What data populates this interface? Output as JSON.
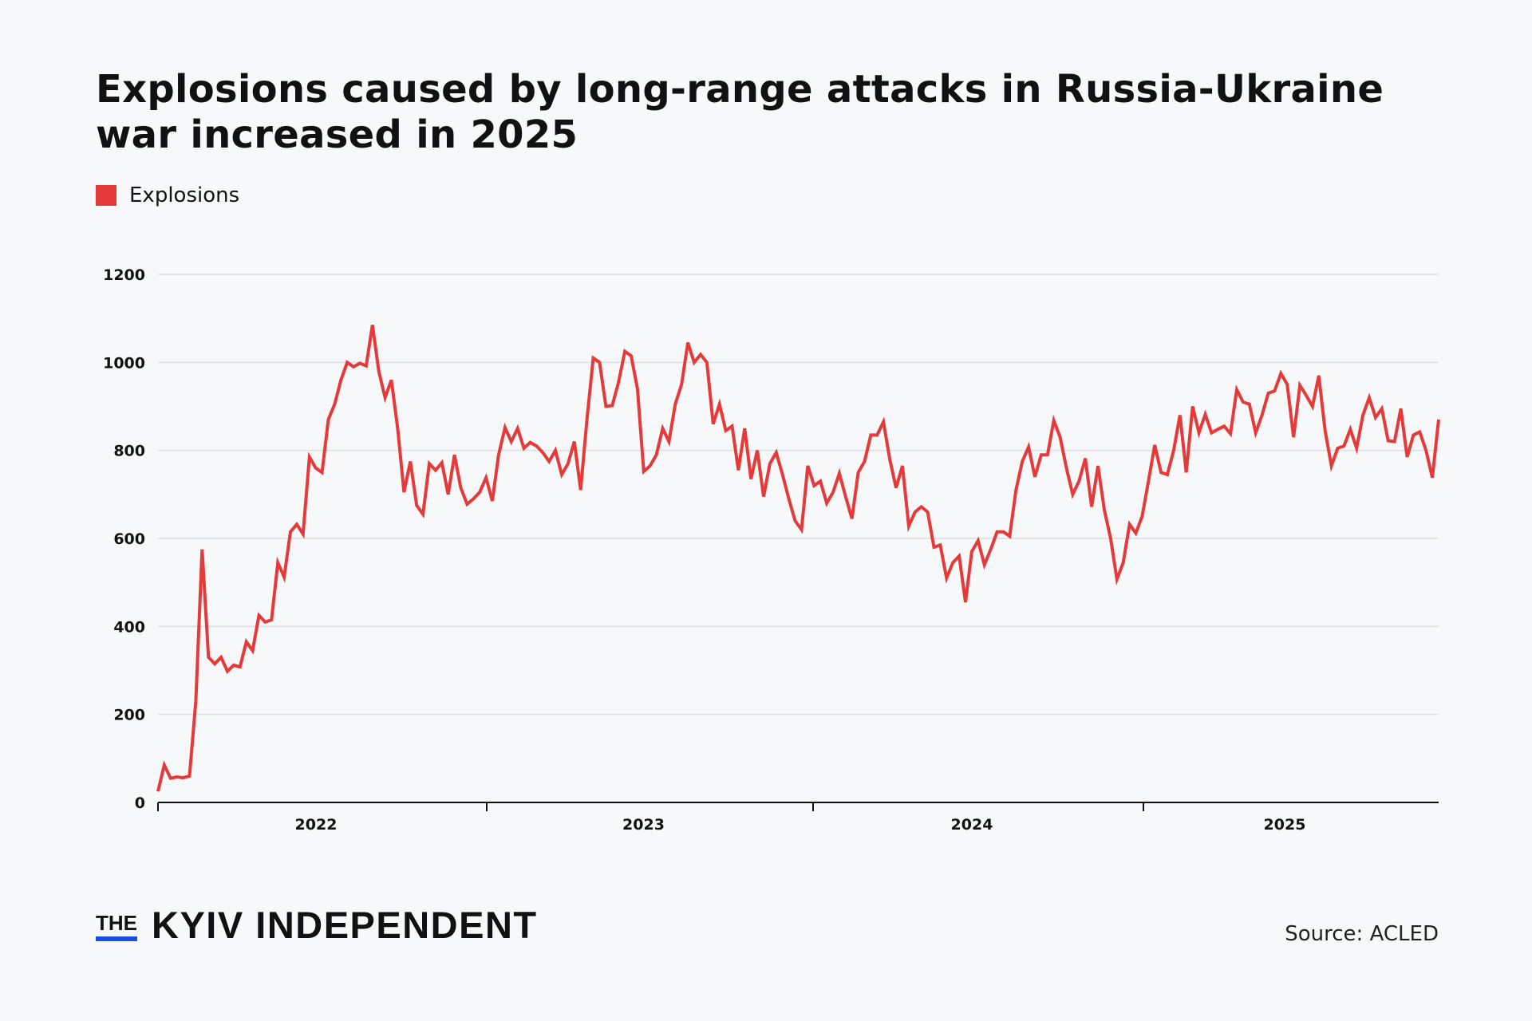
{
  "title": "Explosions caused by long-range attacks in Russia-Ukraine war increased in 2025",
  "legend": {
    "label": "Explosions",
    "color": "#e53a3a"
  },
  "source": "Source: ACLED",
  "logo": {
    "the": "THE",
    "name": "KYIV INDEPENDENT",
    "accent": "#1a4ee0"
  },
  "chart_data": {
    "type": "line",
    "title": "Explosions caused by long-range attacks in Russia-Ukraine war increased in 2025",
    "xlabel": "",
    "ylabel": "",
    "ylim": [
      0,
      1200
    ],
    "yticks": [
      "0",
      "200",
      "400",
      "600",
      "800",
      "1000",
      "1200"
    ],
    "xticks": [
      "2022",
      "2023",
      "2024",
      "2025"
    ],
    "grid": "horizontal",
    "legend_position": "top-left",
    "series": [
      {
        "name": "Explosions",
        "color": "#e53a3a",
        "values": [
          25,
          85,
          55,
          58,
          56,
          60,
          230,
          575,
          330,
          315,
          330,
          298,
          312,
          308,
          365,
          345,
          425,
          410,
          415,
          545,
          512,
          615,
          632,
          610,
          785,
          760,
          750,
          870,
          905,
          960,
          1000,
          990,
          998,
          992,
          1085,
          980,
          920,
          960,
          850,
          705,
          775,
          675,
          655,
          770,
          755,
          772,
          700,
          790,
          715,
          678,
          690,
          705,
          738,
          685,
          790,
          852,
          820,
          850,
          805,
          818,
          810,
          795,
          775,
          800,
          745,
          770,
          820,
          710,
          870,
          1010,
          1000,
          900,
          902,
          955,
          1025,
          1015,
          940,
          752,
          765,
          790,
          850,
          820,
          905,
          950,
          1045,
          1000,
          1018,
          1000,
          860,
          905,
          845,
          855,
          755,
          850,
          735,
          800,
          695,
          770,
          795,
          745,
          690,
          640,
          620,
          765,
          720,
          730,
          680,
          705,
          748,
          695,
          645,
          750,
          775,
          835,
          835,
          865,
          780,
          715,
          765,
          628,
          660,
          672,
          660,
          580,
          585,
          510,
          545,
          560,
          455,
          570,
          595,
          540,
          575,
          615,
          615,
          605,
          710,
          775,
          808,
          740,
          790,
          790,
          868,
          830,
          760,
          700,
          730,
          782,
          672,
          765,
          665,
          600,
          507,
          545,
          632,
          612,
          650,
          730,
          812,
          750,
          745,
          800,
          880,
          750,
          900,
          840,
          882,
          840,
          848,
          855,
          838,
          938,
          910,
          905,
          840,
          880,
          930,
          935,
          975,
          950,
          830,
          948,
          925,
          900,
          970,
          845,
          765,
          805,
          810,
          848,
          805,
          880,
          920,
          875,
          895,
          822,
          820,
          895,
          785,
          835,
          842,
          800,
          738,
          870
        ]
      }
    ]
  }
}
